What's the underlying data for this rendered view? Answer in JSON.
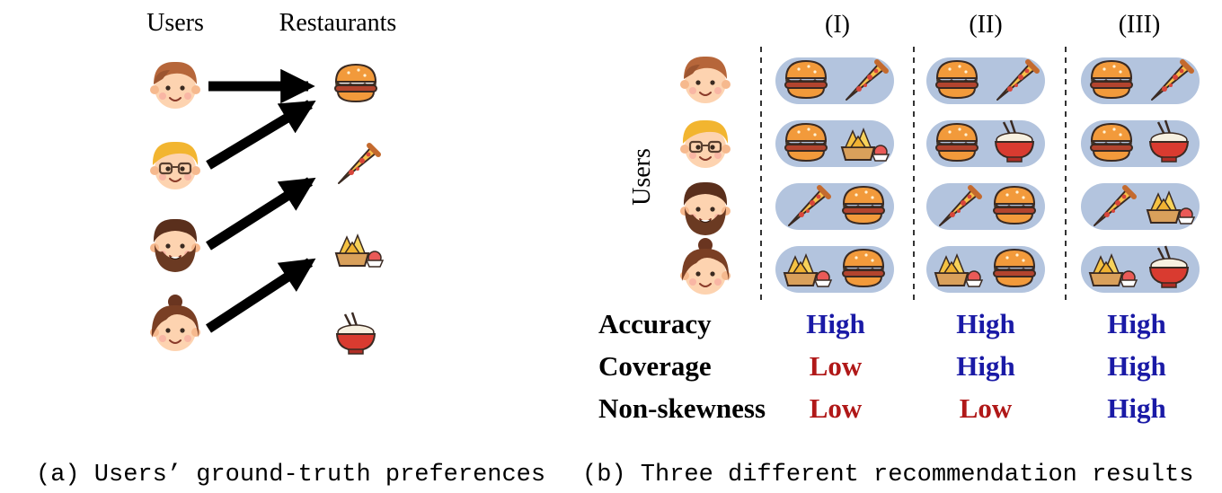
{
  "panel_a": {
    "header_users": "Users",
    "header_restaurants": "Restaurants",
    "users": [
      "user-brown-hair",
      "user-blonde-glasses",
      "user-bearded",
      "user-bun-hair"
    ],
    "restaurants": [
      "burger-icon",
      "pizza-icon",
      "nachos-icon",
      "rice-bowl-icon"
    ],
    "caption": "(a) Users’ ground-truth preferences"
  },
  "panel_b": {
    "columns": [
      "(I)",
      "(II)",
      "(III)"
    ],
    "users_label": "Users",
    "recommendations": [
      [
        [
          "burger-icon",
          "pizza-icon"
        ],
        [
          "burger-icon",
          "pizza-icon"
        ],
        [
          "burger-icon",
          "pizza-icon"
        ]
      ],
      [
        [
          "burger-icon",
          "nachos-icon"
        ],
        [
          "burger-icon",
          "rice-bowl-icon"
        ],
        [
          "burger-icon",
          "rice-bowl-icon"
        ]
      ],
      [
        [
          "pizza-icon",
          "burger-icon"
        ],
        [
          "pizza-icon",
          "burger-icon"
        ],
        [
          "pizza-icon",
          "nachos-icon"
        ]
      ],
      [
        [
          "nachos-icon",
          "burger-icon"
        ],
        [
          "nachos-icon",
          "burger-icon"
        ],
        [
          "nachos-icon",
          "rice-bowl-icon"
        ]
      ]
    ],
    "metrics": [
      {
        "label": "Accuracy",
        "values": [
          "High",
          "High",
          "High"
        ]
      },
      {
        "label": "Coverage",
        "values": [
          "Low",
          "High",
          "High"
        ]
      },
      {
        "label": "Non-skewness",
        "values": [
          "Low",
          "Low",
          "High"
        ]
      }
    ],
    "caption": "(b) Three different recommendation results"
  },
  "colors": {
    "high": "#1a1aa6",
    "low": "#b01818",
    "pill": "#b3c4de"
  }
}
